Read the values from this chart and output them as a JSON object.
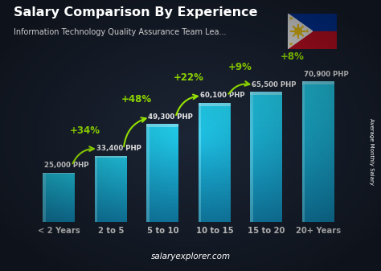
{
  "title": "Salary Comparison By Experience",
  "subtitle": "Information Technology Quality Assurance Team Lea...",
  "categories": [
    "< 2 Years",
    "2 to 5",
    "5 to 10",
    "10 to 15",
    "15 to 20",
    "20+ Years"
  ],
  "values": [
    25000,
    33400,
    49300,
    60100,
    65500,
    70900
  ],
  "labels": [
    "25,000 PHP",
    "33,400 PHP",
    "49,300 PHP",
    "60,100 PHP",
    "65,500 PHP",
    "70,900 PHP"
  ],
  "pct_changes": [
    "+34%",
    "+48%",
    "+22%",
    "+9%",
    "+8%"
  ],
  "bar_color_main": "#29b6e8",
  "bar_color_dark": "#1a7aaa",
  "bar_color_highlight": "#6adcf8",
  "bg_dark": "#1c2535",
  "bg_mid": "#243040",
  "title_color": "#ffffff",
  "subtitle_color": "#cccccc",
  "label_color": "#ffffff",
  "pct_color": "#aaff00",
  "cat_color": "#ffffff",
  "watermark": "salaryexplorer.com",
  "ylabel": "Average Monthly Salary",
  "figsize": [
    4.74,
    3.37
  ],
  "dpi": 100
}
